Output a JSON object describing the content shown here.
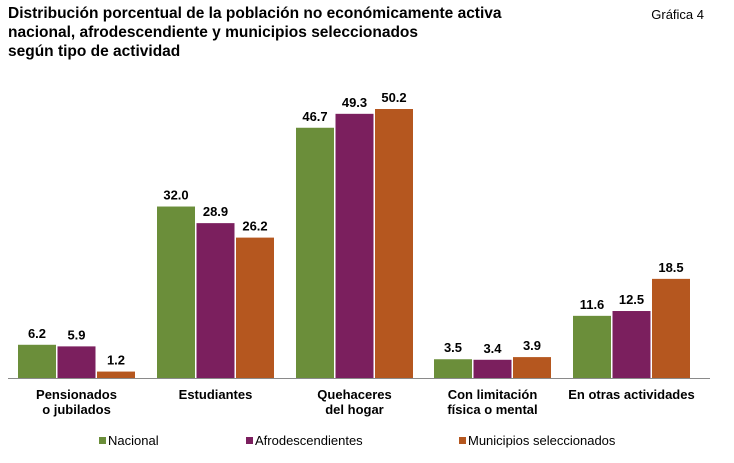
{
  "figure_label": "Gráfica 4",
  "chart_data": {
    "type": "bar",
    "title_lines": [
      "Distribución porcentual de la población no económicamente activa",
      "nacional, afrodescendiente y municipios seleccionados",
      "según tipo de actividad"
    ],
    "categories": [
      [
        "Pensionados",
        "o jubilados"
      ],
      [
        "Estudiantes"
      ],
      [
        "Quehaceres",
        "del hogar"
      ],
      [
        "Con limitación",
        "física o mental"
      ],
      [
        "En otras actividades"
      ]
    ],
    "series": [
      {
        "name": "Nacional",
        "color": "#6b8e3a",
        "values": [
          6.2,
          32.0,
          46.7,
          3.5,
          11.6
        ],
        "labels": [
          "6.2",
          "32.0",
          "46.7",
          "3.5",
          "11.6"
        ]
      },
      {
        "name": "Afrodescendientes",
        "color": "#7b1f5e",
        "values": [
          5.9,
          28.9,
          49.3,
          3.4,
          12.5
        ],
        "labels": [
          "5.9",
          "28.9",
          "49.3",
          "3.4",
          "12.5"
        ]
      },
      {
        "name": "Municipios seleccionados",
        "color": "#b5571f",
        "values": [
          1.2,
          26.2,
          50.2,
          3.9,
          18.5
        ],
        "labels": [
          "1.2",
          "26.2",
          "50.2",
          "3.9",
          "18.5"
        ]
      }
    ],
    "ylim": [
      0,
      50.2
    ],
    "grid": false,
    "legend_position": "bottom"
  }
}
